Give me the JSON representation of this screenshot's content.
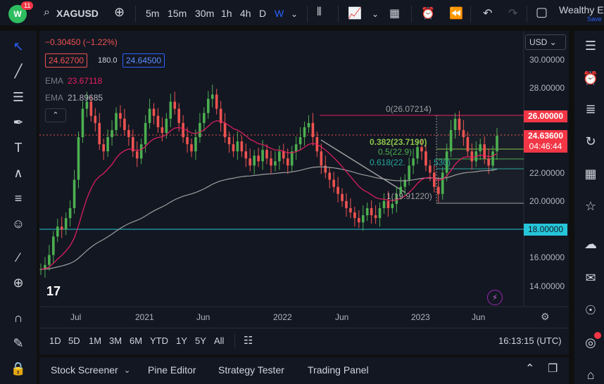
{
  "header": {
    "badge": "11",
    "symbol": "XAGUSD",
    "timeframes": [
      "5m",
      "15m",
      "30m",
      "1h",
      "4h",
      "D",
      "W"
    ],
    "active_timeframe": "W",
    "user": "Wealthy E",
    "save_label": "Save"
  },
  "legend": {
    "change": "−0.30450 (−1.22%)",
    "bid": "24.62700",
    "spread": "180.0",
    "ask": "24.64500",
    "ema1_label": "EMA",
    "ema1_value": "23.67118",
    "ema2_label": "EMA",
    "ema2_value": "21.89685",
    "currency": "USD"
  },
  "price_axis": {
    "labels": [
      "30.00000",
      "28.00000",
      "26.00000",
      "24.63600",
      "04:46:44",
      "22.00000",
      "20.00000",
      "18.00000",
      "16.00000",
      "14.00000"
    ]
  },
  "fib": {
    "level_0": "0(26.07214)",
    "level_0382": "0.382(23.7190)",
    "level_05": "0.5(22.9)",
    "level_0618": "0.618(22.",
    "level_0618_tail": "530)",
    "level_1": "1(19.91220)"
  },
  "time_axis": {
    "labels": [
      "Jul",
      "2021",
      "Jun",
      "2022",
      "Jun",
      "2023",
      "Jun"
    ]
  },
  "range_bar": {
    "ranges": [
      "1D",
      "5D",
      "1M",
      "3M",
      "6M",
      "YTD",
      "1Y",
      "5Y",
      "All"
    ],
    "clock": "16:13:15 (UTC)"
  },
  "bottom_panel": {
    "tabs": [
      "Stock Screener",
      "Pine Editor",
      "Strategy Tester",
      "Trading Panel"
    ]
  },
  "colors": {
    "up": "#26a69a",
    "down": "#ef5350",
    "green_candle": "#4caf50",
    "ema_fast": "#e91e63",
    "ema_slow": "#9e9e9e",
    "level_line": "#26c6da"
  }
}
